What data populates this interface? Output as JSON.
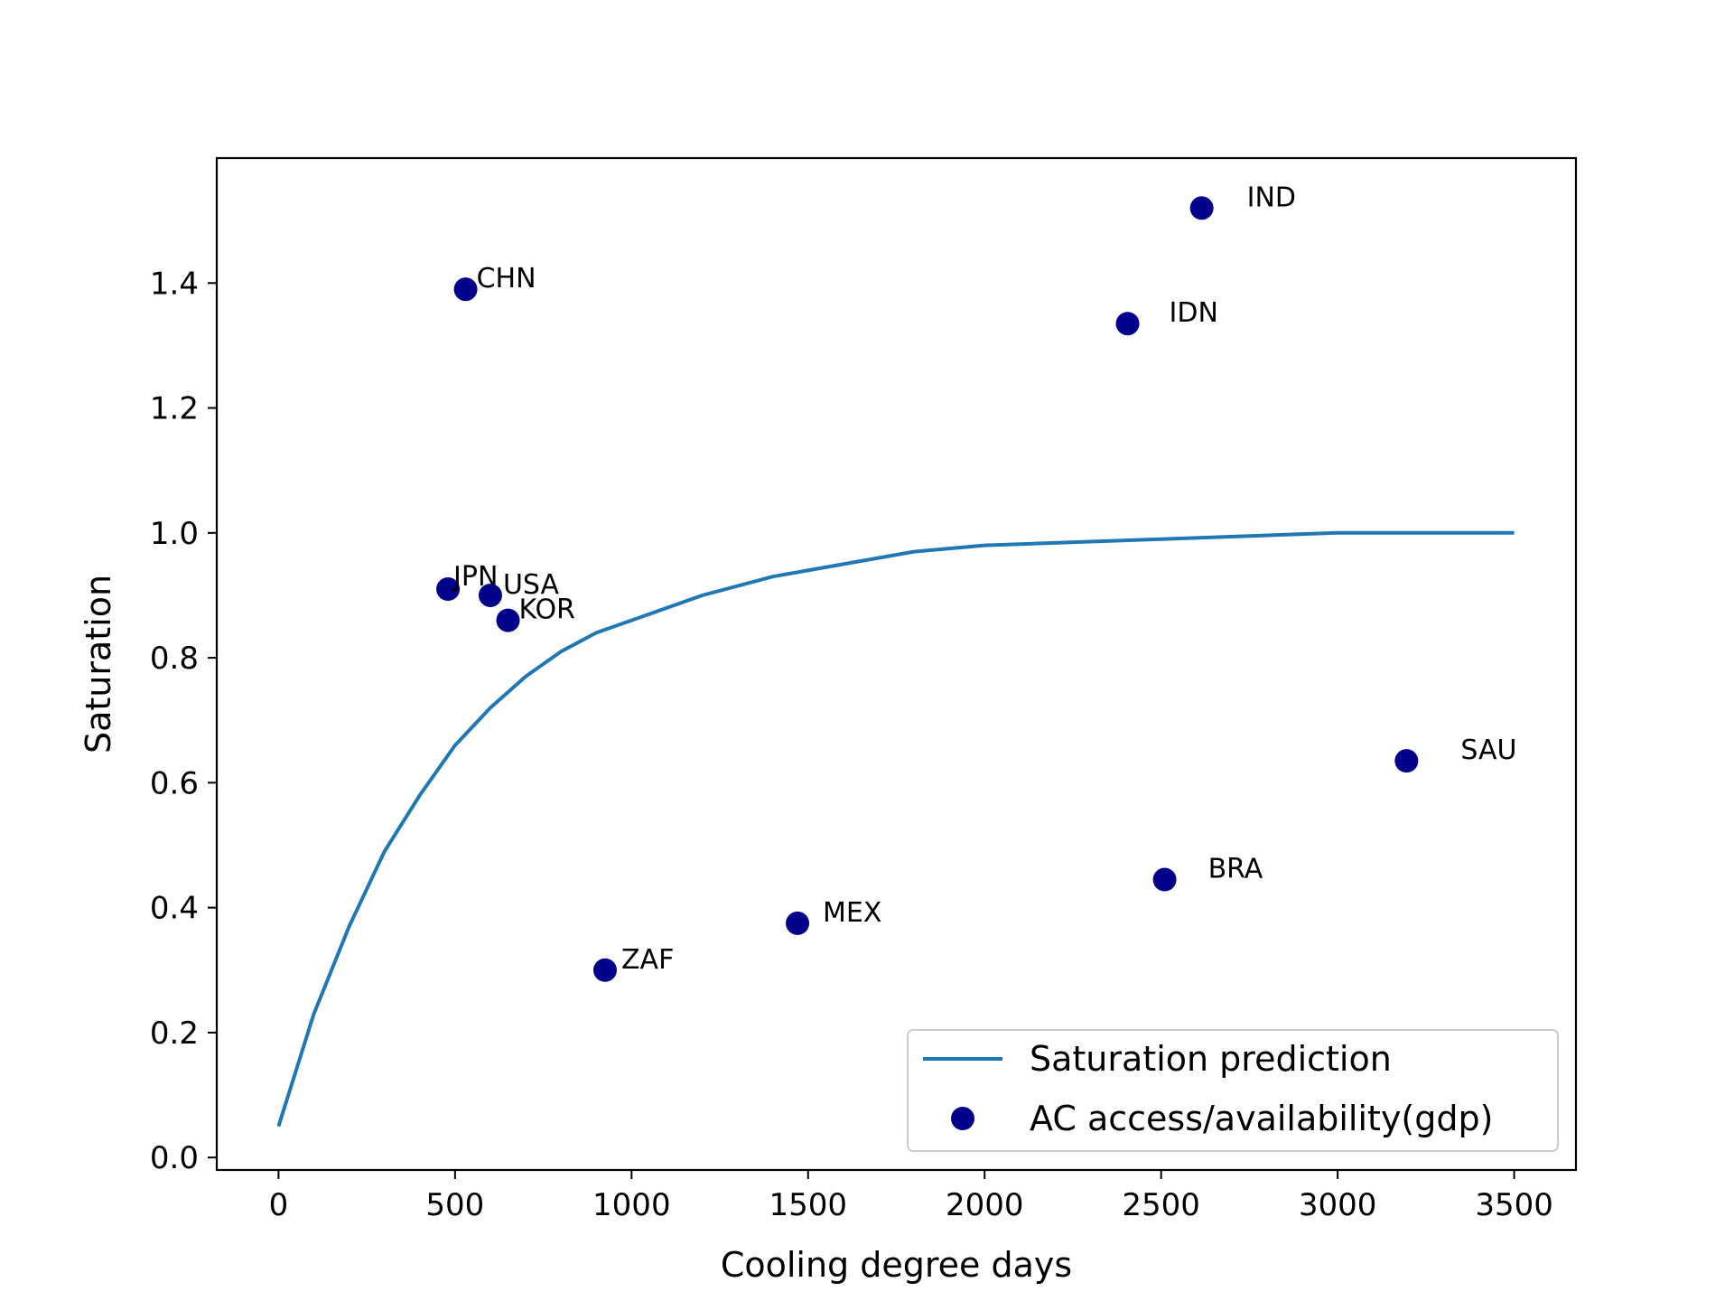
{
  "chart_data": {
    "type": "scatter",
    "xlabel": "Cooling degree days",
    "ylabel": "Saturation",
    "xlim": [
      -175,
      3675
    ],
    "ylim": [
      -0.02,
      1.6
    ],
    "xticks": [
      0,
      500,
      1000,
      1500,
      2000,
      2500,
      3000,
      3500
    ],
    "yticks": [
      0.0,
      0.2,
      0.4,
      0.6,
      0.8,
      1.0,
      1.2,
      1.4
    ],
    "grid": false,
    "legend_position": "lower-right",
    "series": [
      {
        "name": "Saturation prediction",
        "kind": "line",
        "color": "#1f77b4",
        "x": [
          0,
          100,
          200,
          300,
          400,
          500,
          600,
          700,
          800,
          900,
          1000,
          1200,
          1400,
          1600,
          1800,
          2000,
          2500,
          3000,
          3500
        ],
        "y": [
          0.05,
          0.23,
          0.37,
          0.49,
          0.58,
          0.66,
          0.72,
          0.77,
          0.81,
          0.84,
          0.86,
          0.9,
          0.93,
          0.95,
          0.97,
          0.98,
          0.99,
          1.0,
          1.0
        ]
      },
      {
        "name": "AC access/availability(gdp)",
        "kind": "scatter",
        "color": "#00008b",
        "points": [
          {
            "label": "CHN",
            "x": 530,
            "y": 1.39
          },
          {
            "label": "JPN",
            "x": 480,
            "y": 0.91
          },
          {
            "label": "USA",
            "x": 600,
            "y": 0.9
          },
          {
            "label": "KOR",
            "x": 650,
            "y": 0.86
          },
          {
            "label": "ZAF",
            "x": 925,
            "y": 0.3
          },
          {
            "label": "MEX",
            "x": 1470,
            "y": 0.375
          },
          {
            "label": "IDN",
            "x": 2405,
            "y": 1.335
          },
          {
            "label": "IND",
            "x": 2615,
            "y": 1.52
          },
          {
            "label": "BRA",
            "x": 2510,
            "y": 0.445
          },
          {
            "label": "SAU",
            "x": 3195,
            "y": 0.635
          }
        ]
      }
    ]
  }
}
